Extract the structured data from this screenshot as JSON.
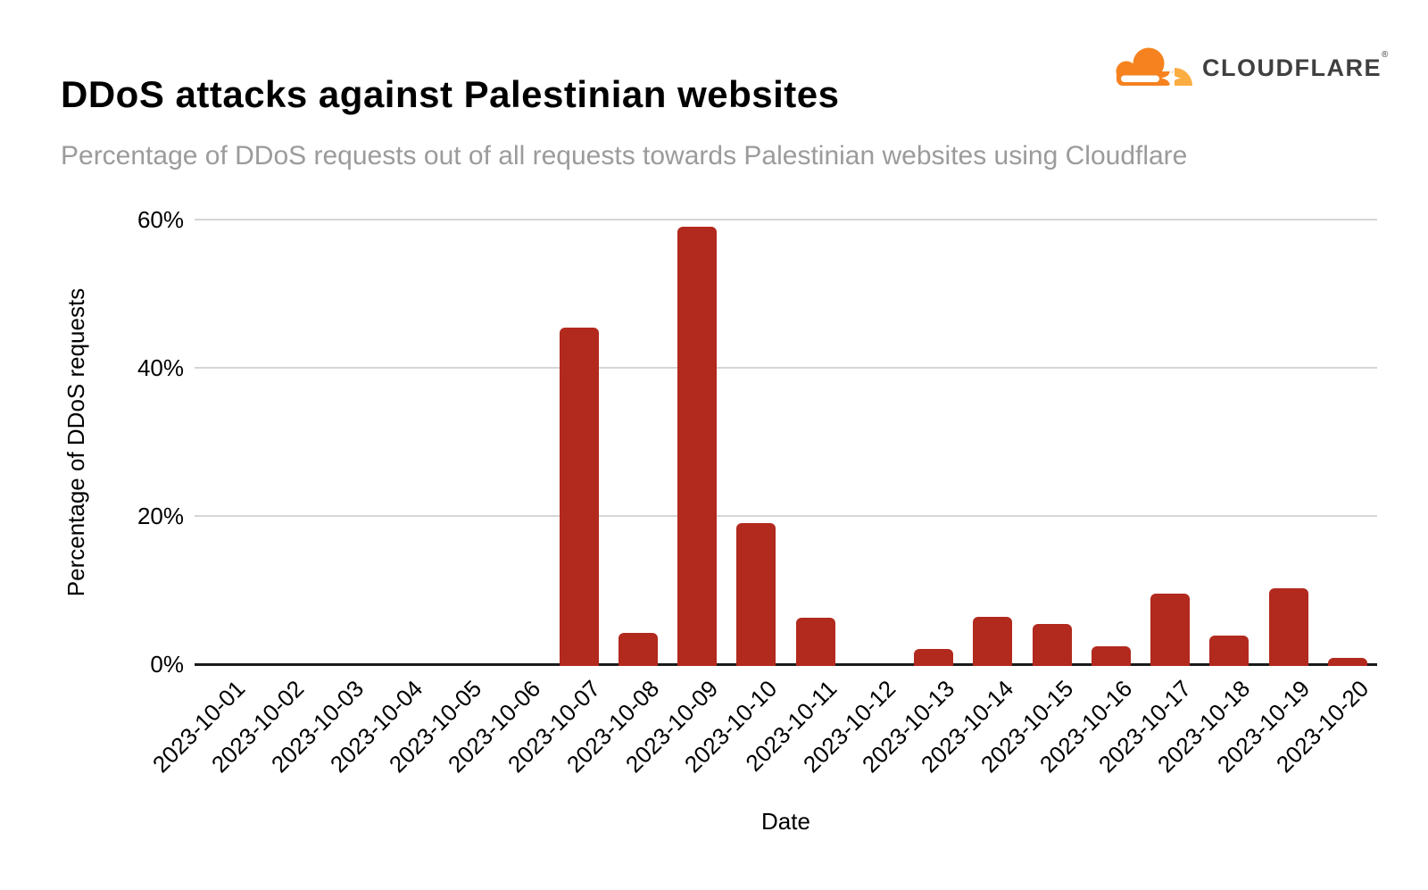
{
  "header": {
    "title": "DDoS attacks against Palestinian websites",
    "subtitle": "Percentage of DDoS requests out of all requests towards Palestinian websites using Cloudflare",
    "logo": {
      "brand": "CLOUDFLARE",
      "registered_mark": "®",
      "cloud_color": "#F6821F",
      "cloud_light_color": "#FBAD41",
      "wordmark_color": "#404041"
    }
  },
  "chart_data": {
    "type": "bar",
    "title": "DDoS attacks against Palestinian websites",
    "subtitle": "Percentage of DDoS requests out of all requests towards Palestinian websites using Cloudflare",
    "xlabel": "Date",
    "ylabel": "Percentage of DDoS requests",
    "categories": [
      "2023-10-01",
      "2023-10-02",
      "2023-10-03",
      "2023-10-04",
      "2023-10-05",
      "2023-10-06",
      "2023-10-07",
      "2023-10-08",
      "2023-10-09",
      "2023-10-10",
      "2023-10-11",
      "2023-10-12",
      "2023-10-13",
      "2023-10-14",
      "2023-10-15",
      "2023-10-16",
      "2023-10-17",
      "2023-10-18",
      "2023-10-19",
      "2023-10-20"
    ],
    "values": [
      0,
      0,
      0,
      0,
      0,
      0,
      45.4,
      4.2,
      59,
      19,
      6.3,
      0,
      2.1,
      6.4,
      5.4,
      2.4,
      9.5,
      3.9,
      10.2,
      0.8
    ],
    "y_ticks": [
      "0%",
      "20%",
      "40%",
      "60%"
    ],
    "y_tick_values": [
      0,
      20,
      40,
      60
    ],
    "ylim": [
      0,
      60
    ],
    "grid": "horizontal",
    "legend": "none",
    "bar_color": "#B2291D",
    "gridline_color": "#D6D6D6",
    "axis_color": "#1A1A1A"
  }
}
